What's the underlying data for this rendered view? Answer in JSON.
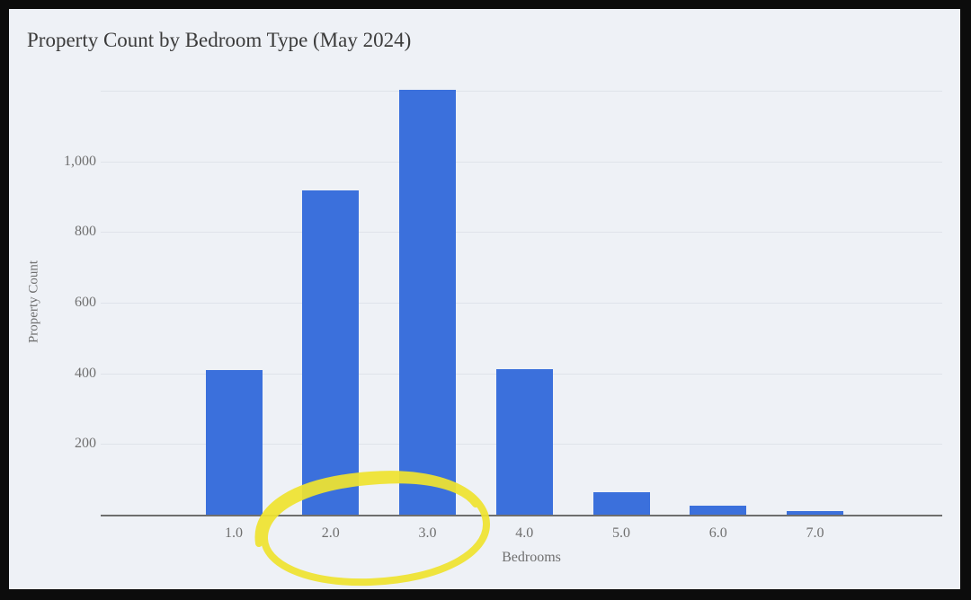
{
  "frame": {
    "border_color": "#0c0c0c",
    "background_color": "#eef1f6"
  },
  "chart_data": {
    "type": "bar",
    "title": "Property Count by Bedroom Type (May 2024)",
    "xlabel": "Bedrooms",
    "ylabel": "Property Count",
    "categories": [
      "1.0",
      "2.0",
      "3.0",
      "4.0",
      "5.0",
      "6.0",
      "7.0"
    ],
    "values": [
      410,
      918,
      1203,
      413,
      64,
      26,
      10
    ],
    "ylim": [
      0,
      1210
    ],
    "yticks": [
      {
        "value": 200,
        "label": "200"
      },
      {
        "value": 400,
        "label": "400"
      },
      {
        "value": 600,
        "label": "600"
      },
      {
        "value": 800,
        "label": "800"
      },
      {
        "value": 1000,
        "label": "1,000"
      },
      {
        "value": 1200,
        "label": ""
      }
    ],
    "grid": true,
    "legend_position": "none",
    "bar_color": "#3b70dc",
    "gridline_color": "#dfe3ea",
    "axis_color": "#6e6e6e",
    "tick_label_color": "#6f6f6f",
    "title_color": "#3b3b3b"
  },
  "annotation": {
    "shape": "hand-drawn ellipse",
    "circled_labels": [
      "2.0",
      "3.0"
    ],
    "color": "#efe32f"
  }
}
